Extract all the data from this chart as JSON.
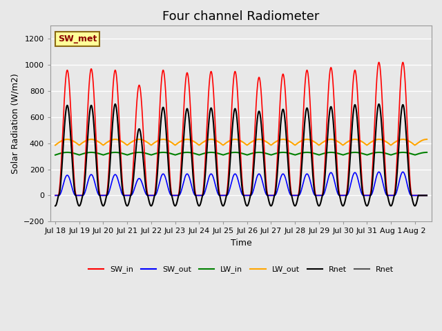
{
  "title": "Four channel Radiometer",
  "xlabel": "Time",
  "ylabel": "Solar Radiation (W/m2)",
  "ylim": [
    -200,
    1300
  ],
  "yticks": [
    -200,
    0,
    200,
    400,
    600,
    800,
    1000,
    1200
  ],
  "x_tick_labels": [
    "Jul 18",
    "Jul 19",
    "Jul 20",
    "Jul 21",
    "Jul 22",
    "Jul 23",
    "Jul 24",
    "Jul 25",
    "Jul 26",
    "Jul 27",
    "Jul 28",
    "Jul 29",
    "Jul 30",
    "Jul 31",
    "Aug 1",
    "Aug 2"
  ],
  "annotation_text": "SW_met",
  "annotation_color": "#8B0000",
  "annotation_bg": "#FFFF99",
  "annotation_border": "#8B6914",
  "background_color": "#E8E8E8",
  "n_cycles": 15,
  "sw_in_peaks": [
    960,
    970,
    960,
    845,
    960,
    940,
    950,
    950,
    905,
    930,
    960,
    980,
    960,
    1020,
    1020
  ],
  "sw_out_peaks": [
    155,
    160,
    160,
    130,
    165,
    165,
    165,
    165,
    165,
    165,
    165,
    175,
    175,
    180,
    180
  ],
  "lw_in_base": 310.0,
  "lw_in_amp": 20.0,
  "lw_out_base": 385.0,
  "lw_out_amp": 45.0,
  "rnet_peaks": [
    690,
    690,
    700,
    510,
    675,
    665,
    670,
    665,
    645,
    660,
    670,
    680,
    695,
    700,
    695
  ],
  "rnet_night": -80.0,
  "pts_per_day": 240
}
